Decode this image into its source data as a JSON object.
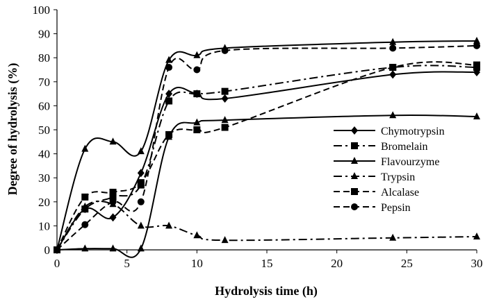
{
  "chart_data": {
    "type": "line",
    "title": "",
    "xlabel": "Hydrolysis time (h)",
    "ylabel": "Degree of hydrolysis (%)",
    "xlim": [
      0,
      30
    ],
    "ylim": [
      0,
      100
    ],
    "xticks": [
      0,
      5,
      10,
      15,
      20,
      25,
      30
    ],
    "yticks": [
      0,
      10,
      20,
      30,
      40,
      50,
      60,
      70,
      80,
      90,
      100
    ],
    "grid": false,
    "legend_position": "right",
    "x": [
      0,
      2,
      4,
      6,
      8,
      10,
      12,
      24,
      30
    ],
    "series": [
      {
        "name": "Chymotrypsin",
        "marker": "diamond",
        "dash": "solid",
        "values": [
          0,
          17,
          13.5,
          32,
          65,
          65,
          63,
          73,
          74
        ]
      },
      {
        "name": "Bromelain",
        "marker": "square",
        "dash": "dashdot",
        "values": [
          0,
          17,
          22,
          27,
          62,
          65,
          66,
          76,
          76
        ]
      },
      {
        "name": "Flavourzyme",
        "marker": "triangle",
        "dash": "solid",
        "values": [
          0,
          42,
          45,
          41,
          79,
          81,
          84,
          86.5,
          87
        ]
      },
      {
        "name": "Trypsin",
        "marker": "triangle",
        "dash": "dashdot",
        "values": [
          0,
          18,
          19,
          10,
          10,
          6,
          4,
          5,
          5.5
        ]
      },
      {
        "name": "Alcalase",
        "marker": "square",
        "dash": "dashed",
        "values": [
          0,
          22,
          24,
          28,
          48,
          50,
          51,
          76,
          77
        ]
      },
      {
        "name": "Pepsin",
        "marker": "circle",
        "dash": "dashed",
        "values": [
          0,
          10.5,
          20,
          20,
          76,
          75,
          83,
          84,
          85
        ]
      },
      {
        "name": "",
        "marker": "triangle",
        "dash": "solid",
        "values": [
          0,
          0.5,
          0.5,
          0.5,
          47,
          53,
          54,
          56,
          55.5
        ]
      }
    ]
  }
}
